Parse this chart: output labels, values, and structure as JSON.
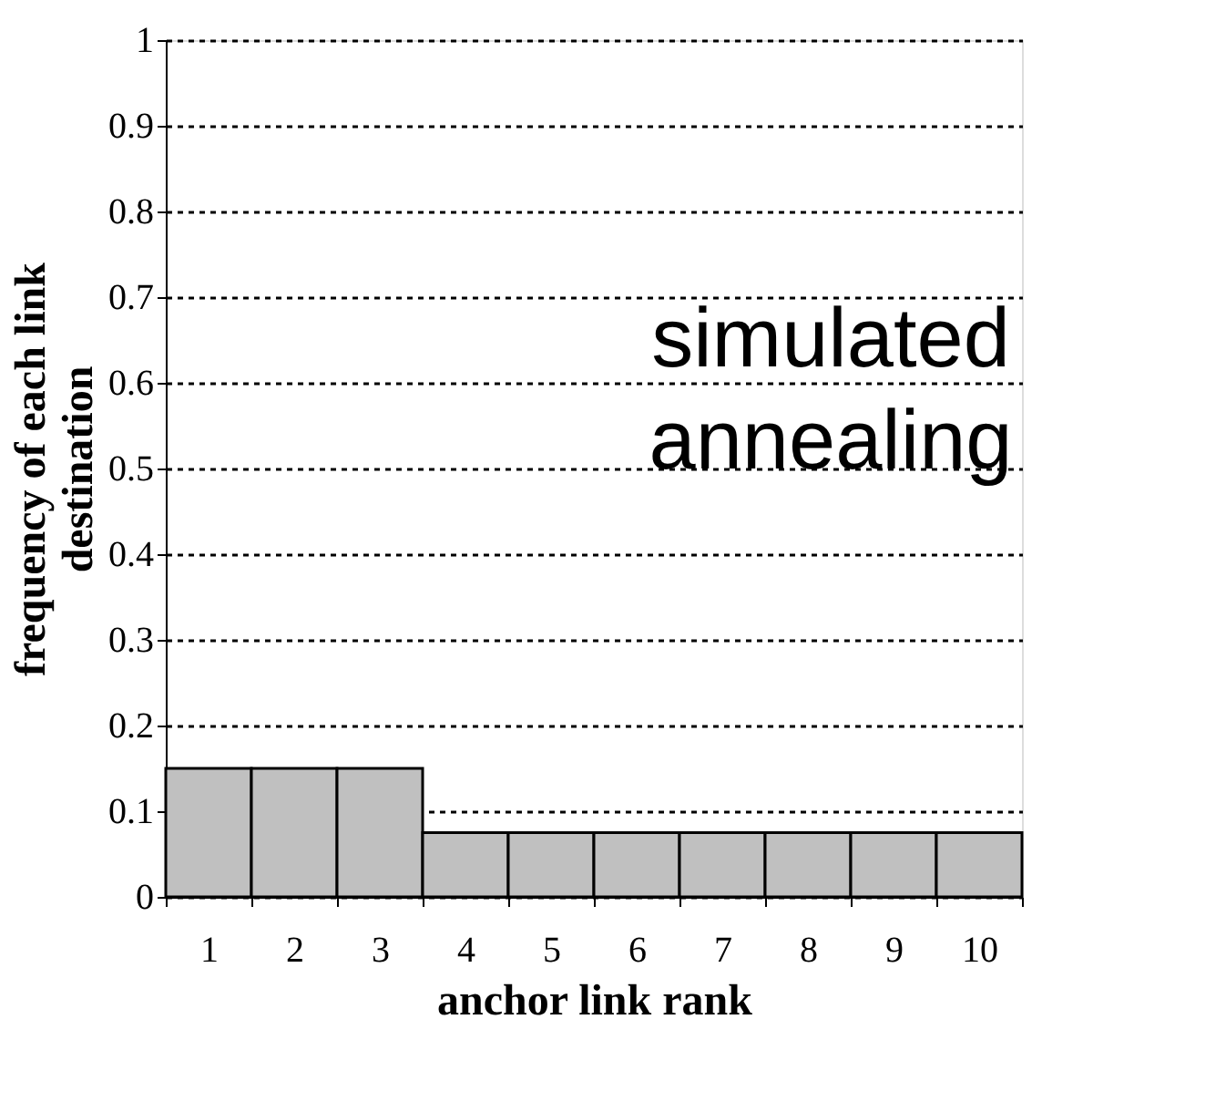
{
  "chart_data": {
    "type": "bar",
    "xlabel": "anchor link rank",
    "ylabel": "frequency of each link destination",
    "categories": [
      "1",
      "2",
      "3",
      "4",
      "5",
      "6",
      "7",
      "8",
      "9",
      "10"
    ],
    "values": [
      0.15,
      0.15,
      0.15,
      0.075,
      0.075,
      0.075,
      0.075,
      0.075,
      0.075,
      0.075
    ],
    "color": "#c0c0c0",
    "ylim": [
      0,
      1
    ],
    "yticks": [
      0,
      0.1,
      0.2,
      0.3,
      0.4,
      0.5,
      0.6,
      0.7,
      0.8,
      0.9,
      1
    ],
    "grid": "y",
    "annotations": [
      "simulated\nannealing"
    ]
  }
}
